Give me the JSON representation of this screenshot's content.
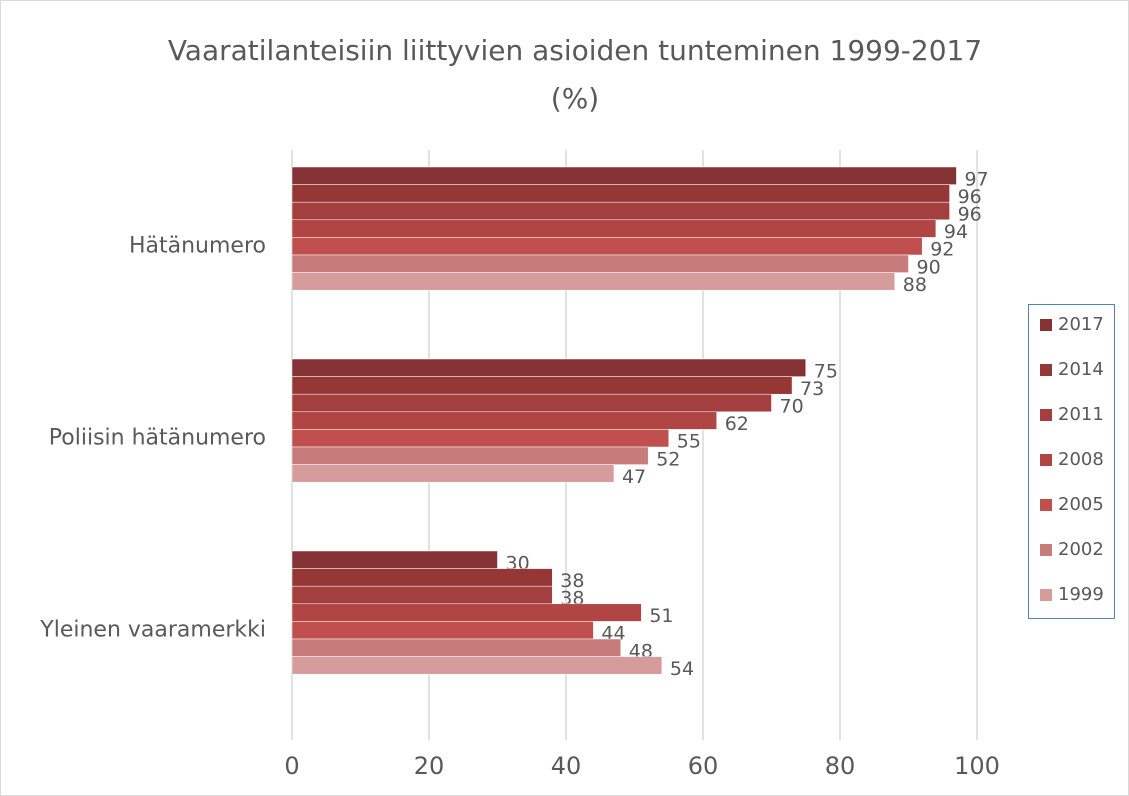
{
  "chart_data": {
    "type": "barh",
    "title": [
      "Vaaratilanteisiin liittyvien asioiden tunteminen 1999-2017",
      "(%)"
    ],
    "categories": [
      "Hätänumero",
      "Poliisin hätänumero",
      "Yleinen vaaramerkki"
    ],
    "series": [
      {
        "name": "2017",
        "color": "#843234",
        "values": [
          97,
          75,
          30
        ]
      },
      {
        "name": "2014",
        "color": "#953735",
        "values": [
          96,
          73,
          38
        ]
      },
      {
        "name": "2011",
        "color": "#a33f3e",
        "values": [
          96,
          70,
          38
        ]
      },
      {
        "name": "2008",
        "color": "#b04543",
        "values": [
          94,
          62,
          51
        ]
      },
      {
        "name": "2005",
        "color": "#c0504d",
        "values": [
          92,
          55,
          44
        ]
      },
      {
        "name": "2002",
        "color": "#c77c7b",
        "values": [
          90,
          52,
          48
        ]
      },
      {
        "name": "1999",
        "color": "#d69c9b",
        "values": [
          88,
          47,
          54
        ]
      }
    ],
    "xlim": [
      0,
      100
    ],
    "xticks": [
      0,
      20,
      40,
      60,
      80,
      100
    ],
    "grid": true,
    "legend": "right"
  }
}
